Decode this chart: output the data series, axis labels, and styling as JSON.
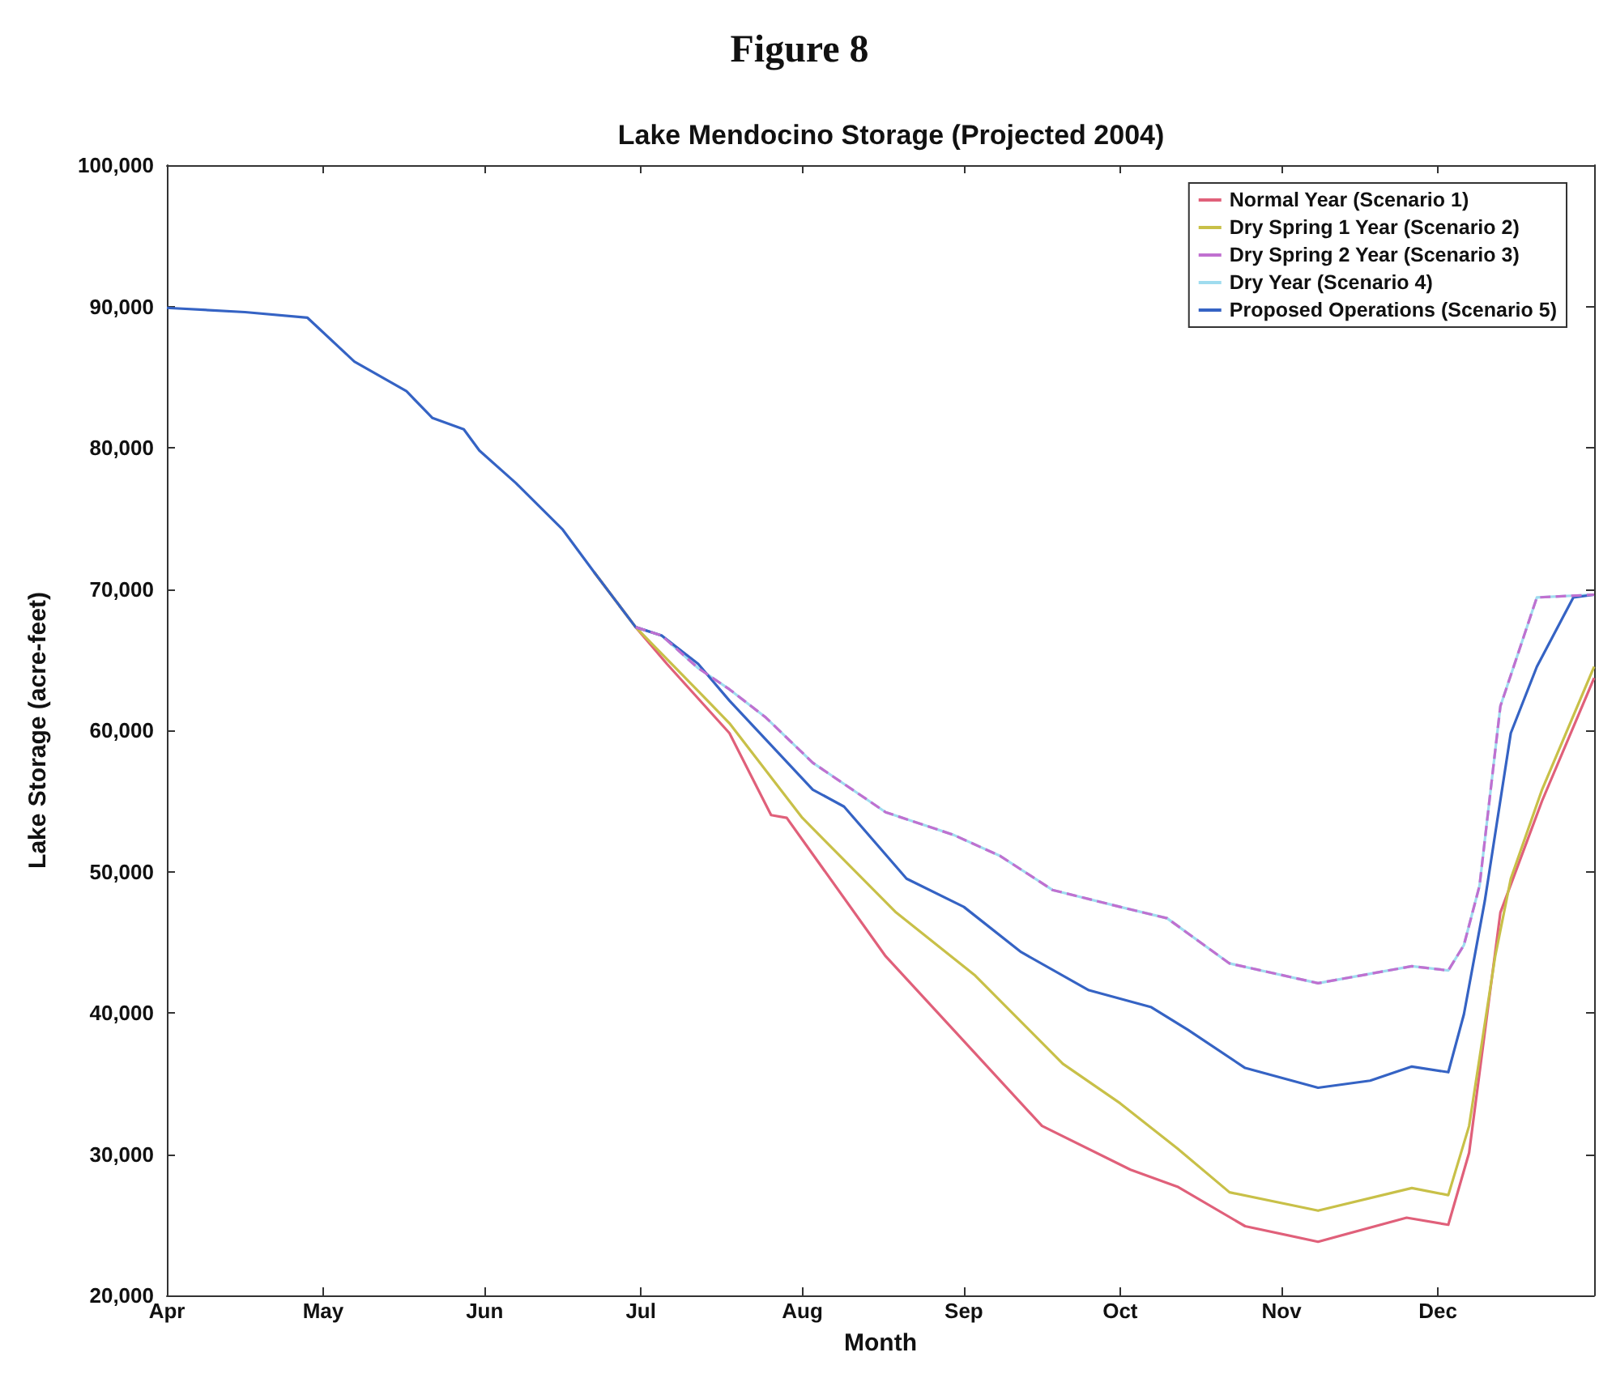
{
  "chart_data": {
    "type": "line",
    "title": "Figure 8",
    "subtitle": "Lake Mendocino Storage (Projected 2004)",
    "xlabel": "Month",
    "ylabel": "Lake Storage (acre-feet)",
    "xlim": [
      "--04-01",
      "--12-31"
    ],
    "xticks": [
      {
        "value": "--04-01",
        "label": "Apr"
      },
      {
        "value": "--05-01",
        "label": "May"
      },
      {
        "value": "--06-01",
        "label": "Jun"
      },
      {
        "value": "--07-01",
        "label": "Jul"
      },
      {
        "value": "--08-01",
        "label": "Aug"
      },
      {
        "value": "--09-01",
        "label": "Sep"
      },
      {
        "value": "--10-01",
        "label": "Oct"
      },
      {
        "value": "--11-01",
        "label": "Nov"
      },
      {
        "value": "--12-01",
        "label": "Dec"
      }
    ],
    "ylim": [
      20000,
      100000
    ],
    "yticks": [
      {
        "value": 20000,
        "label": "20,000"
      },
      {
        "value": 30000,
        "label": "30,000"
      },
      {
        "value": 40000,
        "label": "40,000"
      },
      {
        "value": 50000,
        "label": "50,000"
      },
      {
        "value": 60000,
        "label": "60,000"
      },
      {
        "value": 70000,
        "label": "70,000"
      },
      {
        "value": 80000,
        "label": "80,000"
      },
      {
        "value": 90000,
        "label": "90,000"
      },
      {
        "value": 100000,
        "label": "100,000"
      }
    ],
    "grid": false,
    "legend": "top right",
    "marker": "none",
    "line_style": "solid",
    "series": [
      {
        "name": "Normal Year (Scenario 1)",
        "color": "#e0607a",
        "x": [
          "--06-22",
          "--06-30",
          "--07-06",
          "--07-18",
          "--07-26",
          "--07-29",
          "--08-17",
          "--08-30",
          "--09-16",
          "--10-03",
          "--10-12",
          "--10-25",
          "--11-08",
          "--11-25",
          "--12-03",
          "--12-07",
          "--12-13",
          "--12-21",
          "--12-31"
        ],
        "values": [
          71200,
          67300,
          64700,
          59800,
          54000,
          53800,
          44000,
          38800,
          32000,
          28900,
          27700,
          24900,
          23800,
          25500,
          25000,
          30100,
          47100,
          55000,
          63700
        ]
      },
      {
        "name": "Dry Spring 1 Year (Scenario 2)",
        "color": "#c8c048",
        "x": [
          "--06-22",
          "--06-30",
          "--07-13",
          "--07-18",
          "--08-01",
          "--08-19",
          "--09-03",
          "--09-20",
          "--10-01",
          "--10-12",
          "--10-22",
          "--11-08",
          "--11-26",
          "--12-03",
          "--12-07",
          "--12-12",
          "--12-15",
          "--12-21",
          "--12-31"
        ],
        "values": [
          71200,
          67300,
          62400,
          60500,
          53800,
          47100,
          42700,
          36400,
          33600,
          30400,
          27300,
          26000,
          27600,
          27100,
          32000,
          44000,
          49500,
          55800,
          64500
        ]
      },
      {
        "name": "Dry Spring 2 Year (Scenario 3)",
        "color": "#c070d0",
        "line_style": "dashed",
        "x": [
          "--06-30",
          "--07-05",
          "--07-12",
          "--07-18",
          "--07-25",
          "--08-03",
          "--08-17",
          "--08-30",
          "--09-08",
          "--09-18",
          "--10-01",
          "--10-10",
          "--10-22",
          "--11-08",
          "--11-26",
          "--12-03",
          "--12-06",
          "--12-09",
          "--12-13",
          "--12-20",
          "--12-31"
        ],
        "values": [
          67300,
          66700,
          64400,
          62900,
          60900,
          57700,
          54200,
          52600,
          51100,
          48700,
          47500,
          46700,
          43500,
          42100,
          43300,
          43000,
          44800,
          49000,
          61700,
          69400,
          69600
        ]
      },
      {
        "name": "Dry Year (Scenario 4)",
        "color": "#9fdcef",
        "x": [
          "--06-30",
          "--07-05",
          "--07-12",
          "--07-18",
          "--07-25",
          "--08-03",
          "--08-17",
          "--08-30",
          "--09-08",
          "--09-18",
          "--10-01",
          "--10-10",
          "--10-22",
          "--11-08",
          "--11-26",
          "--12-03",
          "--12-06",
          "--12-09",
          "--12-13",
          "--12-20",
          "--12-31"
        ],
        "values": [
          67300,
          66700,
          64400,
          62900,
          60900,
          57700,
          54200,
          52600,
          51100,
          48700,
          47500,
          46700,
          43500,
          42100,
          43300,
          43000,
          44800,
          49000,
          61700,
          69400,
          69600
        ]
      },
      {
        "name": "Proposed Operations (Scenario 5)",
        "color": "#3563c4",
        "x": [
          "--04-01",
          "--04-16",
          "--04-28",
          "--05-07",
          "--05-17",
          "--05-22",
          "--05-28",
          "--05-31",
          "--06-07",
          "--06-16",
          "--06-22",
          "--06-30",
          "--07-05",
          "--07-12",
          "--07-18",
          "--08-03",
          "--08-09",
          "--08-21",
          "--09-01",
          "--09-12",
          "--09-25",
          "--10-07",
          "--10-14",
          "--10-25",
          "--10-30",
          "--11-08",
          "--11-18",
          "--11-26",
          "--12-03",
          "--12-06",
          "--12-10",
          "--12-15",
          "--12-20",
          "--12-27",
          "--12-31"
        ],
        "values": [
          89900,
          89600,
          89200,
          86100,
          84000,
          82100,
          81300,
          79800,
          77500,
          74200,
          71200,
          67300,
          66700,
          64700,
          62100,
          55800,
          54600,
          49500,
          47500,
          44300,
          41600,
          40400,
          38800,
          36100,
          35600,
          34700,
          35200,
          36200,
          35800,
          39900,
          47900,
          59800,
          64500,
          69400,
          69600
        ]
      }
    ]
  }
}
